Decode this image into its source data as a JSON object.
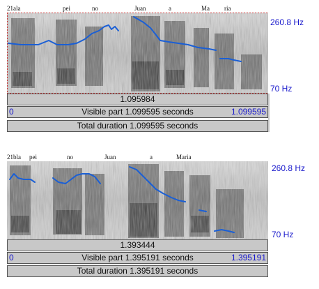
{
  "top": {
    "words": [
      "21ala",
      "pei",
      "no",
      "Juan",
      "a",
      "Ma",
      "ria"
    ],
    "freq_max": "260.8 Hz",
    "freq_min": "70 Hz",
    "cursor_time": "1.095984",
    "visible_start": "0",
    "visible_text": "Visible part 1.099595 seconds",
    "visible_end": "1.099595",
    "total_text": "Total duration 1.099595 seconds"
  },
  "bottom": {
    "words": [
      "21bla",
      "pei",
      "no",
      "Juan",
      "a",
      "Maria"
    ],
    "freq_max": "260.8 Hz",
    "freq_min": "70 Hz",
    "cursor_time": "1.393444",
    "visible_start": "0",
    "visible_text": "Visible part 1.395191 seconds",
    "visible_end": "1.395191",
    "total_text": "Total duration 1.395191 seconds"
  },
  "colors": {
    "pitch": "#1a5fd6",
    "label": "#1a1acc",
    "bar": "#c8c8c8",
    "border": "#555555"
  }
}
